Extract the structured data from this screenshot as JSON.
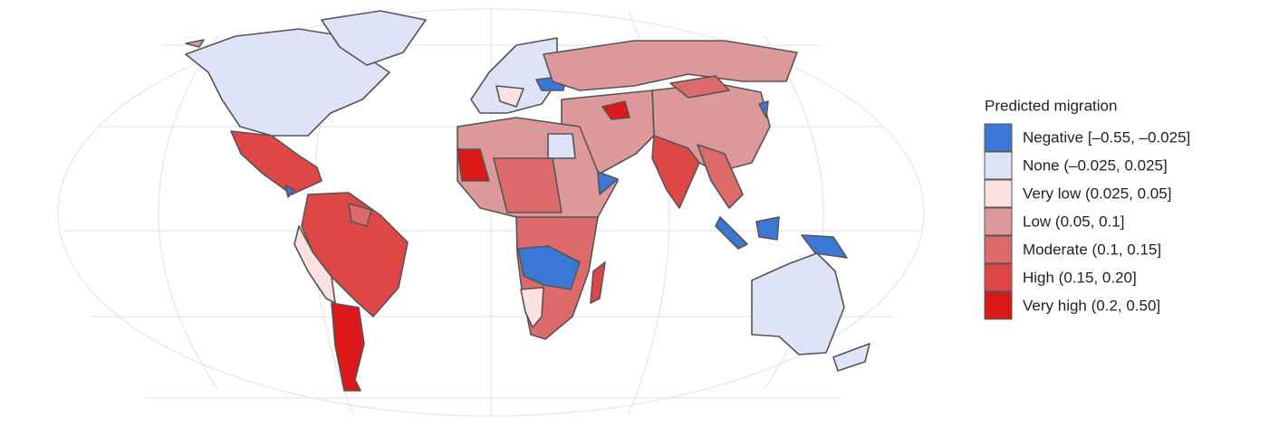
{
  "legend": {
    "title": "Predicted migration",
    "items": [
      {
        "label": "Negative [–0.55, –0.025]",
        "color": "#3b78d6"
      },
      {
        "label": "None (–0.025, 0.025]",
        "color": "#dfe3f7"
      },
      {
        "label": "Very low (0.025, 0.05]",
        "color": "#fbe1e1"
      },
      {
        "label": "Low (0.05, 0.1]",
        "color": "#dd9999"
      },
      {
        "label": "Moderate (0.1, 0.15]",
        "color": "#dc6a6a"
      },
      {
        "label": "High (0.15, 0.20]",
        "color": "#df4747"
      },
      {
        "label": "Very high (0.2, 0.50]",
        "color": "#dc1717"
      }
    ]
  }
}
